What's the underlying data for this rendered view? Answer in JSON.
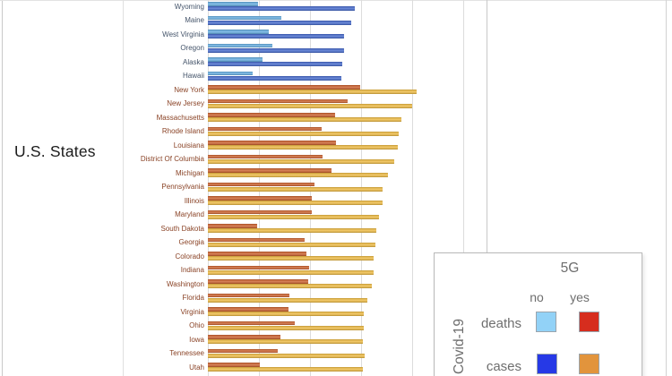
{
  "axis_label": "U.S. States",
  "legend": {
    "title": "5G",
    "col_no": "no",
    "col_yes": "yes",
    "row_deaths": "deaths",
    "row_cases": "cases",
    "side_label": "Covid-19"
  },
  "colors": {
    "bar_deaths_no5g": "#5fa8dc",
    "bar_cases_no5g": "#4065c8",
    "bar_deaths_5g": "#c75b28",
    "bar_cases_5g": "#eab63e",
    "legend_deaths_no": "#92d2f7",
    "legend_deaths_yes": "#d62d1e",
    "legend_cases_no": "#2639e6",
    "legend_cases_yes": "#e2943c",
    "label_no5g": "#44546a",
    "label_5g": "#8a4326",
    "gridline": "#dcdcdc",
    "legend_text": "#6e6e6e"
  },
  "chart_data": {
    "type": "bar",
    "orientation": "horizontal",
    "title": "",
    "ylabel": "U.S. States",
    "xlabel": "",
    "legend": {
      "title": "5G",
      "columns": [
        "no",
        "yes"
      ],
      "rows": [
        "deaths",
        "cases"
      ],
      "side_label": "Covid-19",
      "position": "bottom-right"
    },
    "x_axis": {
      "tick_labels_visible": false,
      "note": "axis tick labels cropped out of screenshot; values below are in gridline units (one unit = one gridline spacing)",
      "gridlines_units": [
        0,
        1,
        2,
        3,
        4,
        5
      ],
      "grid": true
    },
    "series": [
      {
        "name": "deaths"
      },
      {
        "name": "cases"
      }
    ],
    "states": [
      {
        "name": "Wyoming",
        "g5": "no",
        "deaths": 0.98,
        "cases": 2.88
      },
      {
        "name": "Maine",
        "g5": "no",
        "deaths": 1.44,
        "cases": 2.81
      },
      {
        "name": "West Virginia",
        "g5": "no",
        "deaths": 1.19,
        "cases": 2.68
      },
      {
        "name": "Oregon",
        "g5": "no",
        "deaths": 1.26,
        "cases": 2.67
      },
      {
        "name": "Alaska",
        "g5": "no",
        "deaths": 1.07,
        "cases": 2.63
      },
      {
        "name": "Hawaii",
        "g5": "no",
        "deaths": 0.88,
        "cases": 2.61
      },
      {
        "name": "New York",
        "g5": "yes",
        "deaths": 2.98,
        "cases": 4.09
      },
      {
        "name": "New Jersey",
        "g5": "yes",
        "deaths": 2.74,
        "cases": 4.0
      },
      {
        "name": "Massachusetts",
        "g5": "yes",
        "deaths": 2.49,
        "cases": 3.79
      },
      {
        "name": "Rhode Island",
        "g5": "yes",
        "deaths": 2.23,
        "cases": 3.74
      },
      {
        "name": "Louisiana",
        "g5": "yes",
        "deaths": 2.51,
        "cases": 3.72
      },
      {
        "name": "District Of Columbia",
        "g5": "yes",
        "deaths": 2.25,
        "cases": 3.65
      },
      {
        "name": "Michigan",
        "g5": "yes",
        "deaths": 2.42,
        "cases": 3.53
      },
      {
        "name": "Pennsylvania",
        "g5": "yes",
        "deaths": 2.09,
        "cases": 3.42
      },
      {
        "name": "Illinois",
        "g5": "yes",
        "deaths": 2.04,
        "cases": 3.42
      },
      {
        "name": "Maryland",
        "g5": "yes",
        "deaths": 2.04,
        "cases": 3.35
      },
      {
        "name": "South Dakota",
        "g5": "yes",
        "deaths": 0.96,
        "cases": 3.3
      },
      {
        "name": "Georgia",
        "g5": "yes",
        "deaths": 1.89,
        "cases": 3.28
      },
      {
        "name": "Colorado",
        "g5": "yes",
        "deaths": 1.93,
        "cases": 3.25
      },
      {
        "name": "Indiana",
        "g5": "yes",
        "deaths": 1.98,
        "cases": 3.25
      },
      {
        "name": "Washington",
        "g5": "yes",
        "deaths": 1.96,
        "cases": 3.21
      },
      {
        "name": "Florida",
        "g5": "yes",
        "deaths": 1.6,
        "cases": 3.12
      },
      {
        "name": "Virginia",
        "g5": "yes",
        "deaths": 1.58,
        "cases": 3.05
      },
      {
        "name": "Ohio",
        "g5": "yes",
        "deaths": 1.7,
        "cases": 3.05
      },
      {
        "name": "Iowa",
        "g5": "yes",
        "deaths": 1.42,
        "cases": 3.04
      },
      {
        "name": "Tennessee",
        "g5": "yes",
        "deaths": 1.37,
        "cases": 3.07
      },
      {
        "name": "Utah",
        "g5": "yes",
        "deaths": 1.02,
        "cases": 3.04
      }
    ]
  }
}
